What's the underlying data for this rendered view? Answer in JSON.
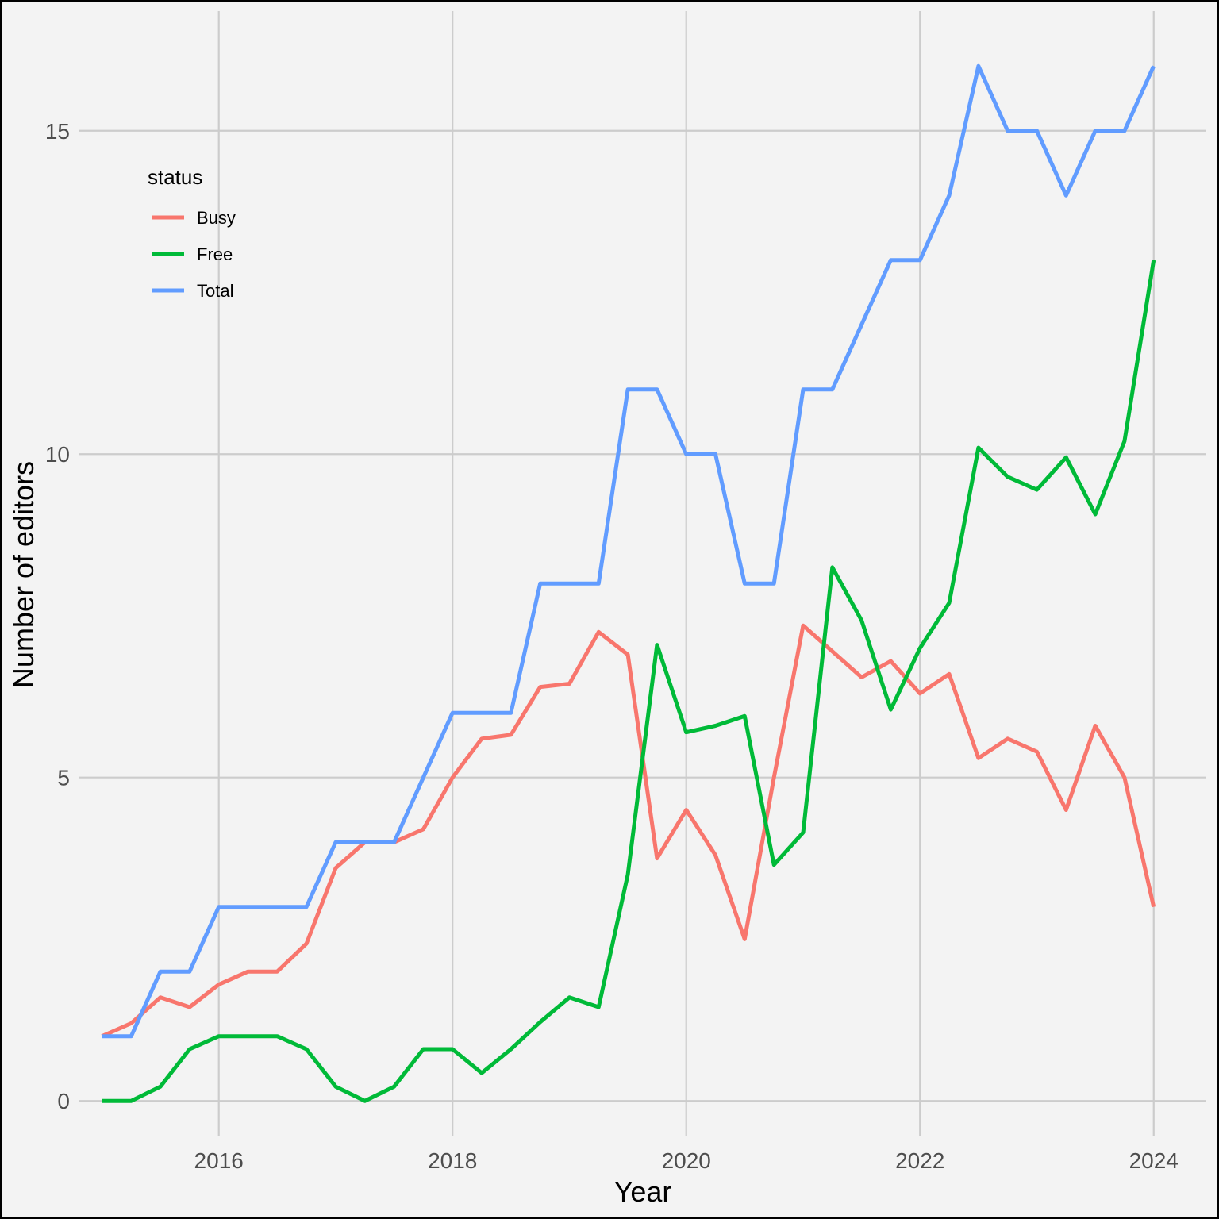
{
  "chart_data": {
    "type": "line",
    "xlabel": "Year",
    "ylabel": "Number of editors",
    "xlim": [
      2014.8,
      2024.45
    ],
    "ylim": [
      -0.55,
      16.85
    ],
    "x_ticks": [
      2016,
      2018,
      2020,
      2022,
      2024
    ],
    "y_ticks": [
      0,
      5,
      10,
      15
    ],
    "grid": true,
    "legend": {
      "title": "status",
      "position": "top-left"
    },
    "x": [
      2015.0,
      2015.25,
      2015.5,
      2015.75,
      2016.0,
      2016.25,
      2016.5,
      2016.75,
      2017.0,
      2017.25,
      2017.5,
      2017.75,
      2018.0,
      2018.25,
      2018.5,
      2018.75,
      2019.0,
      2019.25,
      2019.5,
      2019.75,
      2020.0,
      2020.25,
      2020.5,
      2020.75,
      2021.0,
      2021.25,
      2021.5,
      2021.75,
      2022.0,
      2022.25,
      2022.5,
      2022.75,
      2023.0,
      2023.25,
      2023.5,
      2023.75,
      2024.0
    ],
    "series": [
      {
        "name": "Busy",
        "color": "#f8766d",
        "values": [
          1.0,
          1.2,
          1.6,
          1.45,
          1.8,
          2.0,
          2.0,
          2.43,
          3.6,
          4.0,
          4.0,
          4.2,
          5.0,
          5.6,
          5.66,
          6.4,
          6.45,
          7.25,
          6.9,
          3.75,
          4.5,
          3.8,
          2.5,
          5.0,
          7.35,
          6.95,
          6.55,
          6.8,
          6.3,
          6.6,
          5.3,
          5.6,
          5.4,
          4.5,
          5.8,
          5.0,
          3.0
        ]
      },
      {
        "name": "Free",
        "color": "#00ba38",
        "values": [
          0.0,
          0.0,
          0.22,
          0.8,
          1.0,
          1.0,
          1.0,
          0.8,
          0.22,
          0.0,
          0.22,
          0.8,
          0.8,
          0.43,
          0.8,
          1.22,
          1.6,
          1.45,
          3.5,
          7.05,
          5.7,
          5.8,
          5.95,
          3.65,
          4.15,
          8.25,
          7.43,
          6.05,
          7.0,
          7.7,
          10.1,
          9.65,
          9.45,
          9.95,
          9.07,
          10.2,
          13.0
        ]
      },
      {
        "name": "Total",
        "color": "#619cff",
        "values": [
          1.0,
          1.0,
          2.0,
          2.0,
          3.0,
          3.0,
          3.0,
          3.0,
          4.0,
          4.0,
          4.0,
          5.0,
          6.0,
          6.0,
          6.0,
          8.0,
          8.0,
          8.0,
          11.0,
          11.0,
          10.0,
          10.0,
          8.0,
          8.0,
          11.0,
          11.0,
          12.0,
          13.0,
          13.0,
          14.0,
          16.0,
          15.0,
          15.0,
          14.0,
          15.0,
          15.0,
          16.0
        ]
      }
    ]
  }
}
